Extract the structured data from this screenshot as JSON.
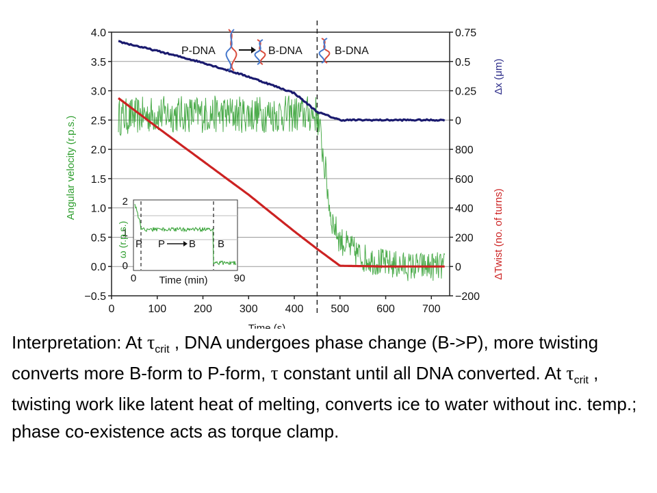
{
  "chart_data": {
    "type": "line",
    "xlabel": "Time (s)",
    "ylabel_left": "Angular velocity (r.p.s.)",
    "ylabel_right_top": "Δx (μm)",
    "ylabel_right_bottom": "ΔTwist (no. of turns)",
    "xlim": [
      0,
      740
    ],
    "ylim_left": [
      -0.5,
      4.0
    ],
    "x_ticks": [
      0,
      100,
      200,
      300,
      400,
      500,
      600,
      700
    ],
    "x_tick_labels": [
      "0",
      "100",
      "200",
      "300",
      "400",
      "500",
      "600",
      "700"
    ],
    "y_left_ticks": [
      4.0,
      3.5,
      3.0,
      2.5,
      2.0,
      1.5,
      1.0,
      0.5,
      0.0,
      -0.5
    ],
    "y_left_tick_labels": [
      "4.0",
      "3.5",
      "3.0",
      "2.5",
      "2.0",
      "1.5",
      "1.0",
      "0.5",
      "0.0",
      "−0.5"
    ],
    "y_right_top_ticks": [
      0.75,
      0.5,
      0.25,
      0
    ],
    "y_right_top_tick_labels": [
      "0.75",
      "0.5",
      "0.25",
      "0"
    ],
    "y_right_bottom_ticks": [
      800,
      600,
      400,
      200,
      0,
      -200
    ],
    "y_right_bottom_tick_labels": [
      "800",
      "600",
      "400",
      "200",
      "0",
      "−200"
    ],
    "transition_time": 450,
    "annotations": [
      "P-DNA",
      "B-DNA",
      "B-DNA"
    ],
    "series": [
      {
        "name": "Angular velocity",
        "color": "#2e9e2e",
        "x": [
          15,
          100,
          200,
          300,
          400,
          450,
          460,
          470,
          480,
          500,
          550,
          600,
          650,
          730
        ],
        "y": [
          2.55,
          2.6,
          2.6,
          2.6,
          2.6,
          2.6,
          2.1,
          1.5,
          0.85,
          0.45,
          0.15,
          0.05,
          0.0,
          0.0
        ]
      },
      {
        "name": "Δx",
        "color": "#1a1a6e",
        "x": [
          15,
          100,
          200,
          300,
          400,
          450,
          500,
          600,
          730
        ],
        "y": [
          0.67,
          0.59,
          0.49,
          0.37,
          0.23,
          0.07,
          0.0,
          0.0,
          0.0
        ]
      },
      {
        "name": "ΔTwist",
        "color": "#cc2222",
        "x": [
          15,
          100,
          200,
          300,
          400,
          450,
          500,
          600,
          730
        ],
        "y": [
          1150,
          950,
          720,
          490,
          240,
          120,
          5,
          0,
          0
        ]
      }
    ],
    "inset": {
      "xlabel": "Time (min)",
      "ylabel": "ω (r.p.s.)",
      "x_tick_labels": [
        "0",
        "90"
      ],
      "y_tick_labels": [
        "2",
        "1",
        "0"
      ],
      "region_labels": [
        "P",
        "P",
        "B",
        "B"
      ]
    }
  },
  "caption": {
    "t1": "Interpretation: At ",
    "tau1": "τ",
    "sub1": "crit",
    "t2": " , DNA undergoes phase change (B->P), more twisting converts more B-form to P-form, ",
    "tau2": "τ",
    "t3": " constant until all DNA converted. At ",
    "tau3": "τ",
    "sub2": "crit",
    "t4": " , twisting work like latent heat of melting, converts ice to water without inc. temp.; phase co-existence acts as torque clamp."
  }
}
